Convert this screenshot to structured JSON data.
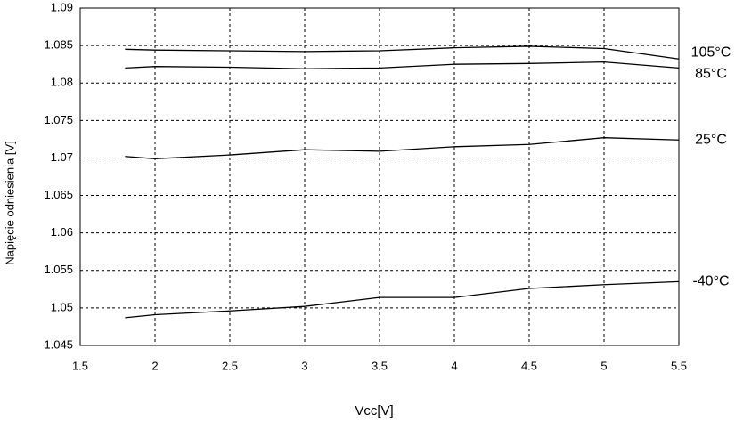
{
  "chart_data": {
    "type": "line",
    "xlabel": "Vcc[V]",
    "ylabel": "Napięcie odniesienia [V]",
    "x": [
      1.8,
      2,
      2.5,
      3,
      3.5,
      4,
      4.5,
      5,
      5.5
    ],
    "series": [
      {
        "name": "105°C",
        "color": "#000000",
        "values": [
          1.0845,
          1.0844,
          1.0843,
          1.0842,
          1.0843,
          1.0847,
          1.0849,
          1.0846,
          1.0832
        ]
      },
      {
        "name": "85°C",
        "color": "#000000",
        "values": [
          1.082,
          1.0822,
          1.0821,
          1.0819,
          1.082,
          1.0825,
          1.0826,
          1.0828,
          1.082
        ]
      },
      {
        "name": "25°C",
        "color": "#000000",
        "values": [
          1.0702,
          1.0699,
          1.0704,
          1.0711,
          1.0709,
          1.0715,
          1.0718,
          1.0727,
          1.0724
        ]
      },
      {
        "name": "-40°C",
        "color": "#000000",
        "values": [
          1.0487,
          1.0491,
          1.0496,
          1.0502,
          1.0514,
          1.0514,
          1.0526,
          1.0531,
          1.0535
        ]
      }
    ],
    "xlim": [
      1.5,
      5.5
    ],
    "xticks": [
      1.5,
      2,
      2.5,
      3,
      3.5,
      4,
      4.5,
      5,
      5.5
    ],
    "ylim": [
      1.045,
      1.09
    ],
    "yticks": [
      1.045,
      1.05,
      1.055,
      1.06,
      1.065,
      1.07,
      1.075,
      1.08,
      1.085,
      1.09
    ],
    "grid": true
  }
}
